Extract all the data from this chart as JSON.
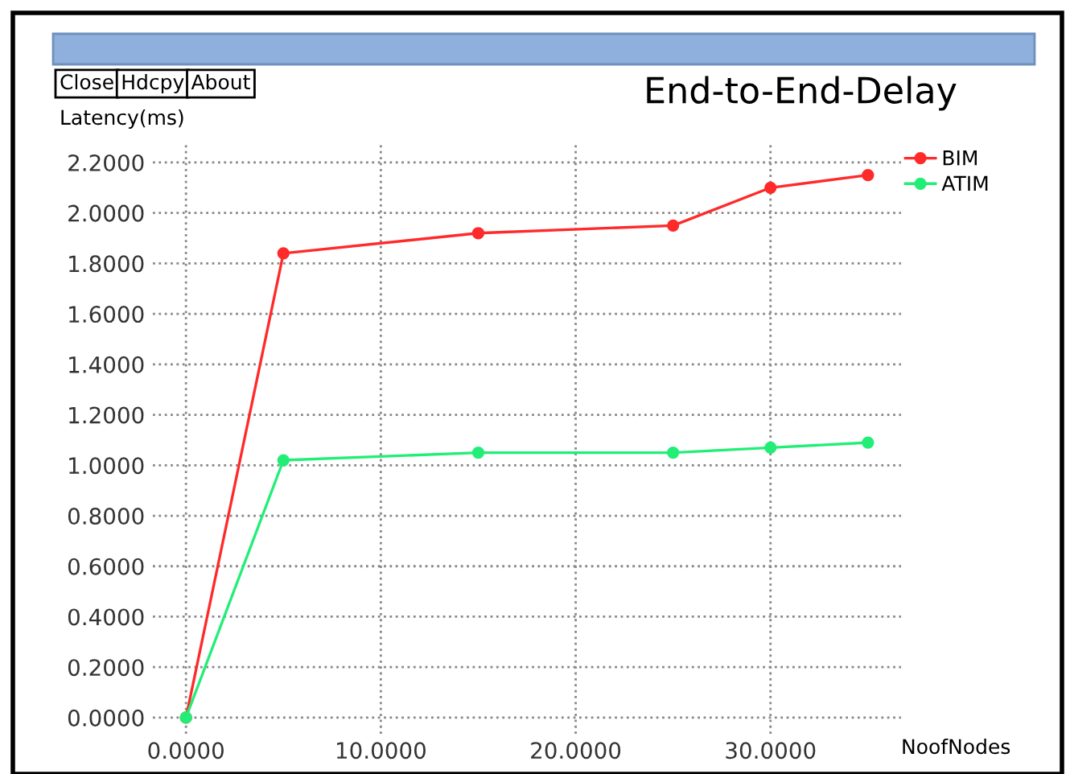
{
  "chart_data": {
    "type": "line",
    "title": "End-to-End-Delay",
    "xlabel": "NoofNodes",
    "ylabel": "Latency(ms)",
    "annotations": [
      "Close",
      "Hdcpy",
      "About"
    ],
    "x": [
      0,
      5,
      15,
      25,
      30,
      35
    ],
    "series": [
      {
        "name": "BIM",
        "color": "#ff2a2a",
        "values": [
          0,
          1.84,
          1.92,
          1.95,
          2.1,
          2.15
        ]
      },
      {
        "name": "ATIM",
        "color": "#22ee77",
        "values": [
          0,
          1.02,
          1.05,
          1.05,
          1.07,
          1.09
        ]
      }
    ],
    "xlim": [
      -1.7,
      36.7
    ],
    "ylim": [
      -0.064,
      2.27
    ],
    "xticks": [
      {
        "value": 0,
        "label": "0.0000"
      },
      {
        "value": 10,
        "label": "10.0000"
      },
      {
        "value": 20,
        "label": "20.0000"
      },
      {
        "value": 30,
        "label": "30.0000"
      }
    ],
    "yticks": [
      {
        "value": 0,
        "label": "0.0000"
      },
      {
        "value": 0.2,
        "label": "0.2000"
      },
      {
        "value": 0.4,
        "label": "0.4000"
      },
      {
        "value": 0.6,
        "label": "0.6000"
      },
      {
        "value": 0.8,
        "label": "0.8000"
      },
      {
        "value": 1.0,
        "label": "1.0000"
      },
      {
        "value": 1.2,
        "label": "1.2000"
      },
      {
        "value": 1.4,
        "label": "1.4000"
      },
      {
        "value": 1.6,
        "label": "1.6000"
      },
      {
        "value": 1.8,
        "label": "1.8000"
      },
      {
        "value": 2.0,
        "label": "2.0000"
      },
      {
        "value": 2.2,
        "label": "2.2000"
      }
    ],
    "grid": true,
    "legend": "top right",
    "marker": "circle",
    "line_style": "solid"
  }
}
